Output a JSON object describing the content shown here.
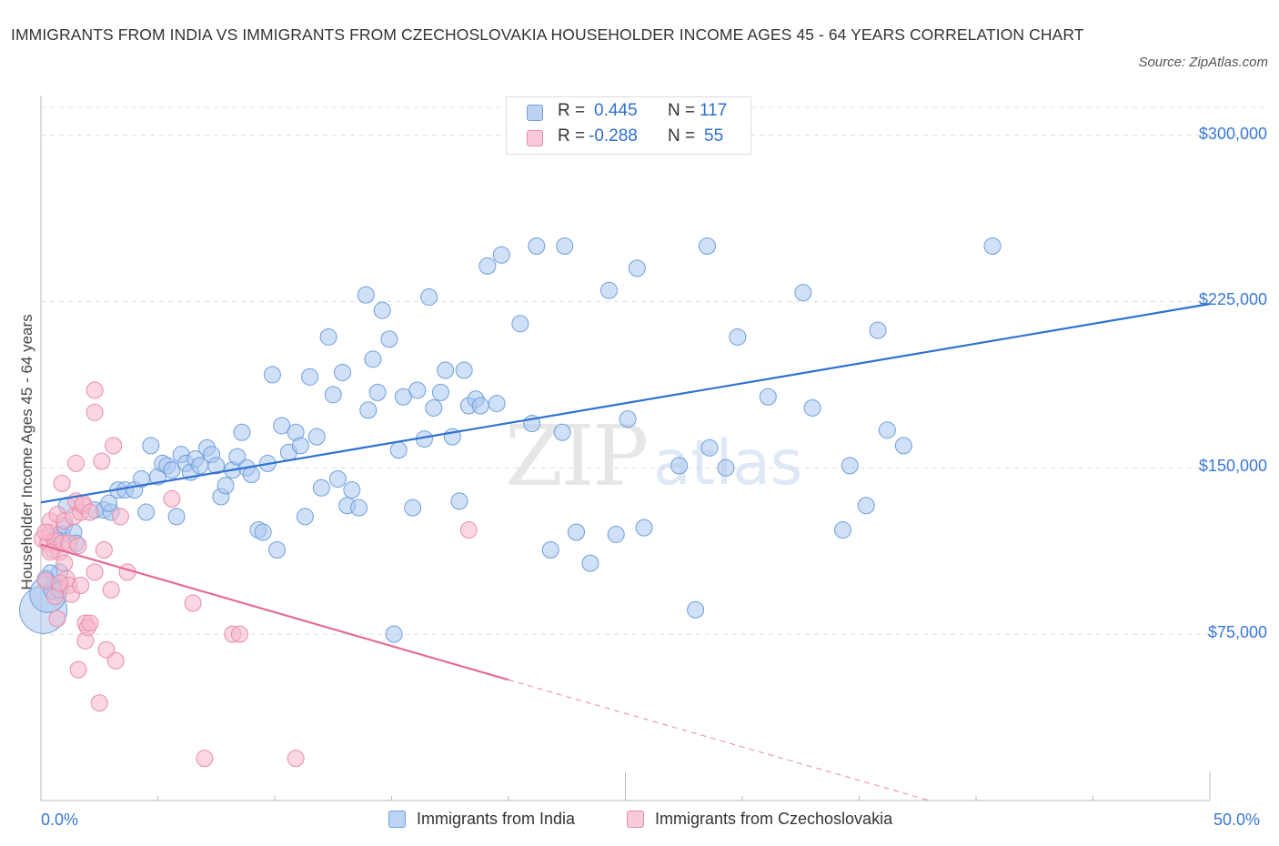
{
  "title": "IMMIGRANTS FROM INDIA VS IMMIGRANTS FROM CZECHOSLOVAKIA HOUSEHOLDER INCOME AGES 45 - 64 YEARS CORRELATION CHART",
  "source": "Source: ZipAtlas.com",
  "watermark": {
    "zip": "ZIP",
    "atlas": "atlas"
  },
  "stats": {
    "india": {
      "r_label": "R =",
      "r_value": "0.445",
      "n_label": "N =",
      "n_value": "117"
    },
    "czech": {
      "r_label": "R =",
      "r_value": "-0.288",
      "n_label": "N =",
      "n_value": "55"
    }
  },
  "legend": {
    "india": "Immigrants from India",
    "czech": "Immigrants from Czechoslovakia"
  },
  "colors": {
    "india_fill": "#a9c6ef",
    "india_stroke": "#6f9fdc",
    "india_line": "#2f72d0",
    "czech_fill": "#f5b6cb",
    "czech_stroke": "#e88dab",
    "czech_line": "#e46b93",
    "tick_text": "#3a78d4"
  },
  "chart_data": {
    "type": "scatter",
    "title": "IMMIGRANTS FROM INDIA VS IMMIGRANTS FROM CZECHOSLOVAKIA HOUSEHOLDER INCOME AGES 45 - 64 YEARS CORRELATION CHART",
    "xlabel": "",
    "ylabel": "Householder Income Ages 45 - 64 years",
    "xlim": [
      0,
      50
    ],
    "ylim": [
      0,
      315000
    ],
    "x_tick_labels": [
      "0.0%",
      "50.0%"
    ],
    "y_ticks": [
      75000,
      150000,
      225000,
      300000
    ],
    "y_tick_labels": [
      "$75,000",
      "$150,000",
      "$225,000",
      "$300,000"
    ],
    "grid": "horizontal dashed",
    "legend_position": "bottom-center",
    "series": [
      {
        "name": "Immigrants from India",
        "r": 0.445,
        "n": 117,
        "trend": {
          "x": [
            0,
            50
          ],
          "y": [
            134400,
            223900
          ]
        },
        "points": [
          [
            0.1,
            86000,
            26
          ],
          [
            0.3,
            93000,
            20
          ],
          [
            0.5,
            95000,
            10
          ],
          [
            0.8,
            95000,
            9
          ],
          [
            0.9,
            120000,
            9
          ],
          [
            1.0,
            124000,
            9
          ],
          [
            0.8,
            103000,
            9
          ],
          [
            0.4,
            103000,
            8
          ],
          [
            1.4,
            121000,
            9
          ],
          [
            1.5,
            116000,
            9
          ],
          [
            2.3,
            131000,
            9
          ],
          [
            2.7,
            131000,
            9
          ],
          [
            3.0,
            130000,
            9
          ],
          [
            2.9,
            134000,
            9
          ],
          [
            3.3,
            140000,
            9
          ],
          [
            3.6,
            140000,
            9
          ],
          [
            4.0,
            140000,
            9
          ],
          [
            4.3,
            145000,
            9
          ],
          [
            4.5,
            130000,
            9
          ],
          [
            4.7,
            160000,
            9
          ],
          [
            5.0,
            146000,
            9
          ],
          [
            5.2,
            152000,
            9
          ],
          [
            5.4,
            151000,
            9
          ],
          [
            5.6,
            149000,
            9
          ],
          [
            5.8,
            128000,
            9
          ],
          [
            6.0,
            156000,
            9
          ],
          [
            6.2,
            152000,
            9
          ],
          [
            6.4,
            148000,
            9
          ],
          [
            6.6,
            154000,
            9
          ],
          [
            6.8,
            151000,
            9
          ],
          [
            7.1,
            159000,
            9
          ],
          [
            7.3,
            156000,
            9
          ],
          [
            7.5,
            151000,
            9
          ],
          [
            7.7,
            137000,
            9
          ],
          [
            7.9,
            142000,
            9
          ],
          [
            8.2,
            149000,
            9
          ],
          [
            8.4,
            155000,
            9
          ],
          [
            8.6,
            166000,
            9
          ],
          [
            8.8,
            150000,
            9
          ],
          [
            9.0,
            147000,
            9
          ],
          [
            9.3,
            122000,
            9
          ],
          [
            9.5,
            121000,
            9
          ],
          [
            9.7,
            152000,
            9
          ],
          [
            9.9,
            192000,
            9
          ],
          [
            10.1,
            113000,
            9
          ],
          [
            10.3,
            169000,
            9
          ],
          [
            10.6,
            157000,
            9
          ],
          [
            10.9,
            166000,
            9
          ],
          [
            11.1,
            160000,
            9
          ],
          [
            11.3,
            128000,
            9
          ],
          [
            11.5,
            191000,
            9
          ],
          [
            11.8,
            164000,
            9
          ],
          [
            12.0,
            141000,
            9
          ],
          [
            12.3,
            209000,
            9
          ],
          [
            12.5,
            183000,
            9
          ],
          [
            12.7,
            145000,
            9
          ],
          [
            12.9,
            193000,
            9
          ],
          [
            13.1,
            133000,
            9
          ],
          [
            13.3,
            140000,
            9
          ],
          [
            13.6,
            132000,
            9
          ],
          [
            13.9,
            228000,
            9
          ],
          [
            14.0,
            176000,
            9
          ],
          [
            14.2,
            199000,
            9
          ],
          [
            14.4,
            184000,
            9
          ],
          [
            14.6,
            221000,
            9
          ],
          [
            14.9,
            208000,
            9
          ],
          [
            15.1,
            75000,
            9
          ],
          [
            15.3,
            158000,
            9
          ],
          [
            15.5,
            182000,
            9
          ],
          [
            15.9,
            132000,
            9
          ],
          [
            16.1,
            185000,
            9
          ],
          [
            16.4,
            163000,
            9
          ],
          [
            16.6,
            227000,
            9
          ],
          [
            16.8,
            177000,
            9
          ],
          [
            17.1,
            184000,
            9
          ],
          [
            17.3,
            194000,
            9
          ],
          [
            17.6,
            164000,
            9
          ],
          [
            17.9,
            135000,
            9
          ],
          [
            18.1,
            194000,
            9
          ],
          [
            18.3,
            178000,
            9
          ],
          [
            18.6,
            181000,
            9
          ],
          [
            18.8,
            178000,
            9
          ],
          [
            19.1,
            241000,
            9
          ],
          [
            19.5,
            179000,
            9
          ],
          [
            19.7,
            246000,
            9
          ],
          [
            20.5,
            215000,
            9
          ],
          [
            21.0,
            170000,
            9
          ],
          [
            21.2,
            250000,
            9
          ],
          [
            21.8,
            113000,
            9
          ],
          [
            22.4,
            250000,
            9
          ],
          [
            22.3,
            166000,
            9
          ],
          [
            22.9,
            121000,
            9
          ],
          [
            23.5,
            107000,
            9
          ],
          [
            24.3,
            230000,
            9
          ],
          [
            24.6,
            120000,
            9
          ],
          [
            25.1,
            172000,
            9
          ],
          [
            25.5,
            240000,
            9
          ],
          [
            25.8,
            123000,
            9
          ],
          [
            27.3,
            151000,
            9
          ],
          [
            28.0,
            86000,
            9
          ],
          [
            28.5,
            250000,
            9
          ],
          [
            28.6,
            159000,
            9
          ],
          [
            29.3,
            150000,
            9
          ],
          [
            29.8,
            209000,
            9
          ],
          [
            31.1,
            182000,
            9
          ],
          [
            32.6,
            229000,
            9
          ],
          [
            33.0,
            177000,
            9
          ],
          [
            34.3,
            122000,
            9
          ],
          [
            34.6,
            151000,
            9
          ],
          [
            35.3,
            133000,
            9
          ],
          [
            35.8,
            212000,
            9
          ],
          [
            36.2,
            167000,
            9
          ],
          [
            36.9,
            160000,
            9
          ],
          [
            40.7,
            250000,
            9
          ],
          [
            0.6,
            118000,
            9
          ],
          [
            1.1,
            133000,
            9
          ],
          [
            0.2,
            100000,
            9
          ]
        ]
      },
      {
        "name": "Immigrants from Czechoslovakia",
        "r": -0.288,
        "n": 55,
        "trend": {
          "x": [
            0,
            20
          ],
          "y": [
            115400,
            54400
          ]
        },
        "trend_dashed": {
          "x": [
            20,
            38
          ],
          "y": [
            54400,
            0
          ]
        },
        "points": [
          [
            0.1,
            118000,
            10
          ],
          [
            0.2,
            99000,
            9
          ],
          [
            0.3,
            116000,
            9
          ],
          [
            0.4,
            121000,
            9
          ],
          [
            0.4,
            126000,
            9
          ],
          [
            0.5,
            113000,
            9
          ],
          [
            0.6,
            117000,
            9
          ],
          [
            0.6,
            92000,
            9
          ],
          [
            0.7,
            129000,
            9
          ],
          [
            0.7,
            82000,
            9
          ],
          [
            0.8,
            112000,
            9
          ],
          [
            0.9,
            143000,
            9
          ],
          [
            0.9,
            116000,
            9
          ],
          [
            1.0,
            107000,
            9
          ],
          [
            1.0,
            126000,
            9
          ],
          [
            1.1,
            100000,
            9
          ],
          [
            1.2,
            116000,
            9
          ],
          [
            1.2,
            97000,
            9
          ],
          [
            1.3,
            93000,
            9
          ],
          [
            1.4,
            128000,
            9
          ],
          [
            1.5,
            135000,
            9
          ],
          [
            1.5,
            152000,
            9
          ],
          [
            1.6,
            59000,
            9
          ],
          [
            1.7,
            130000,
            9
          ],
          [
            1.7,
            97000,
            9
          ],
          [
            1.8,
            133000,
            9
          ],
          [
            1.8,
            134000,
            9
          ],
          [
            1.9,
            80000,
            9
          ],
          [
            1.9,
            72000,
            9
          ],
          [
            2.0,
            78000,
            9
          ],
          [
            2.1,
            130000,
            9
          ],
          [
            2.1,
            80000,
            9
          ],
          [
            2.3,
            103000,
            9
          ],
          [
            2.3,
            185000,
            9
          ],
          [
            2.5,
            44000,
            9
          ],
          [
            2.6,
            153000,
            9
          ],
          [
            2.7,
            113000,
            9
          ],
          [
            2.8,
            68000,
            9
          ],
          [
            3.0,
            95000,
            9
          ],
          [
            3.1,
            160000,
            9
          ],
          [
            3.2,
            63000,
            9
          ],
          [
            3.4,
            128000,
            9
          ],
          [
            3.7,
            103000,
            9
          ],
          [
            5.6,
            136000,
            9
          ],
          [
            6.5,
            89000,
            9
          ],
          [
            7.0,
            19000,
            9
          ],
          [
            8.2,
            75000,
            9
          ],
          [
            8.5,
            75000,
            9
          ],
          [
            10.9,
            19000,
            9
          ],
          [
            18.3,
            122000,
            9
          ],
          [
            2.3,
            175000,
            9
          ],
          [
            0.2,
            121000,
            9
          ],
          [
            0.8,
            98000,
            9
          ],
          [
            1.6,
            115000,
            9
          ],
          [
            0.4,
            112000,
            9
          ]
        ]
      }
    ]
  }
}
